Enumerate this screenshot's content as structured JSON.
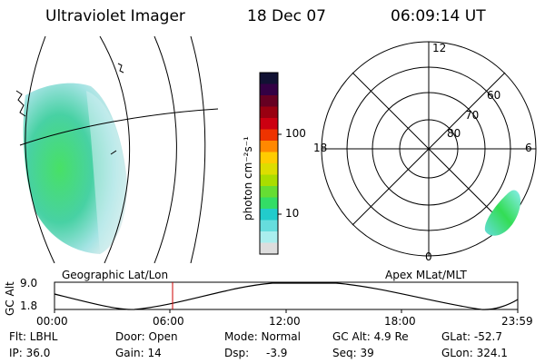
{
  "header": {
    "instrument": "Ultraviolet Imager",
    "date": "18 Dec 07",
    "time": "06:09:14 UT"
  },
  "colorbar": {
    "unit_label": "photon cm⁻²s⁻¹",
    "ticks": [
      "100",
      "10"
    ],
    "colors": [
      "#111133",
      "#330044",
      "#660022",
      "#990011",
      "#cc0011",
      "#ee3300",
      "#ff8800",
      "#ffcc00",
      "#dddd00",
      "#aadd00",
      "#66dd33",
      "#33dd66",
      "#22cccc",
      "#66dddd",
      "#aaeeee",
      "#dddddd"
    ]
  },
  "polar_plot": {
    "mlt_labels": {
      "top": "12",
      "left": "18",
      "right": "6",
      "bottom": "0"
    },
    "lat_labels": [
      "60",
      "70",
      "80"
    ],
    "caption": "Apex MLat/MLT"
  },
  "geo_plot": {
    "caption": "Geographic Lat/Lon"
  },
  "orbit_plot": {
    "ylabel": "GC Alt",
    "ymax_label": "9.0",
    "ymin_label": "1.8",
    "x_ticks": [
      "00:00",
      "06:00",
      "12:00",
      "18:00",
      "23:59"
    ],
    "marker_color": "#cc0000"
  },
  "footer": {
    "filter": "Flt: LBHL",
    "ip": "IP: 36.0",
    "door": "Door: Open",
    "gain": "Gain: 14",
    "mode": "Mode: Normal",
    "dsp_label": "Dsp:",
    "dsp_value": "-3.9",
    "gc_alt": "GC Alt: 4.9 Re",
    "seq": "Seq: 39",
    "glat": "GLat: -52.7",
    "glon": "GLon: 324.1"
  }
}
